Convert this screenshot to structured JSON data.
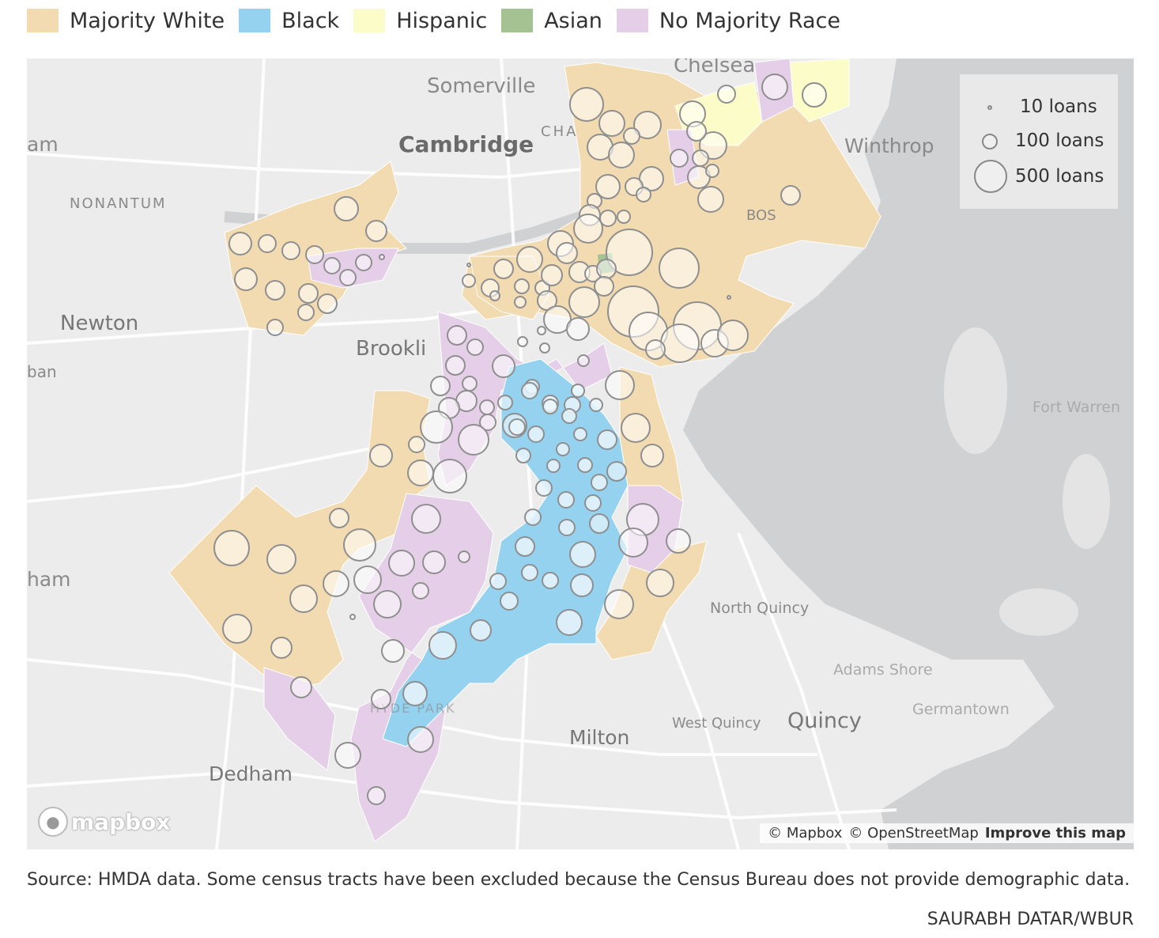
{
  "legend": {
    "items": [
      {
        "label": "Majority White",
        "color": "#f2dbb0"
      },
      {
        "label": "Black",
        "color": "#94d2ef"
      },
      {
        "label": "Hispanic",
        "color": "#fcfcc8"
      },
      {
        "label": "Asian",
        "color": "#a5c293"
      },
      {
        "label": "No Majority Race",
        "color": "#e5cfe8"
      }
    ]
  },
  "size_legend": {
    "items": [
      {
        "label": "10 loans",
        "loans": 10
      },
      {
        "label": "100 loans",
        "loans": 100
      },
      {
        "label": "500 loans",
        "loans": 500
      }
    ]
  },
  "places": {
    "chelsea": "Chelsea",
    "somerville": "Somerville",
    "cha": "CHA",
    "cambridge": "Cambridge",
    "winthrop": "Winthrop",
    "nonantum": "NONANTUM",
    "bos": "BOS",
    "am": "am",
    "newton": "Newton",
    "brookline": "Brookli",
    "ban": "ban",
    "fort_warren": "Fort Warren",
    "ham": "ham",
    "north_quincy": "North Quincy",
    "adams_shore": "Adams Shore",
    "germantown": "Germantown",
    "west_quincy": "West Quincy",
    "quincy": "Quincy",
    "milton": "Milton",
    "dedham": "Dedham",
    "hyde_park": "HYDE PARK"
  },
  "map": {
    "logo": "mapbox",
    "attribution_mapbox": "© Mapbox",
    "attribution_osm": "© OpenStreetMap",
    "improve": "Improve this map"
  },
  "source_note": "Source: HMDA data. Some census tracts have been excluded because the Census Bureau does not provide demographic data.",
  "credit": "SAURABH DATAR/WBUR"
}
